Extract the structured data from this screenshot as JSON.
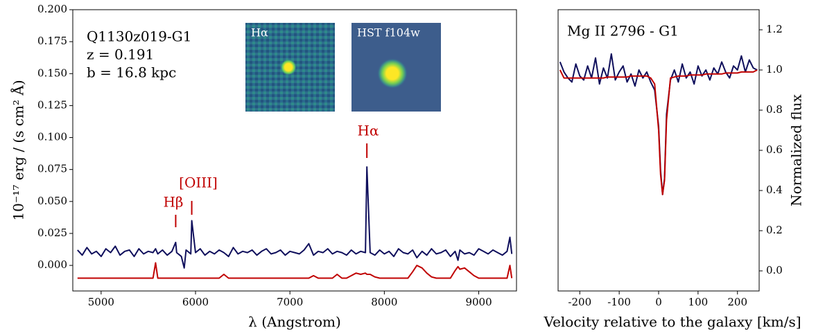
{
  "chart_data": [
    {
      "type": "line",
      "x_label": "λ (Angstrom)",
      "y_label": "10⁻¹⁷ erg / (s cm² Å)",
      "annotations": [
        "Q1130z019-G1",
        "z = 0.191",
        "b = 16.8 kpc"
      ],
      "line_labels": [
        {
          "text": "Hβ",
          "x": 5790
        },
        {
          "text": "[OIII]",
          "x": 5960
        },
        {
          "text": "Hα",
          "x": 7815
        }
      ],
      "line_label_color": "#c00000",
      "insets": [
        "Hα",
        "HST f104w"
      ],
      "xlim": [
        4700,
        9400
      ],
      "ylim": [
        -0.02,
        0.2
      ],
      "xticks": [
        5000,
        6000,
        7000,
        8000,
        9000
      ],
      "yticks": [
        {
          "value": 0,
          "label": "0.000"
        },
        {
          "value": 0.025,
          "label": "0.025"
        },
        {
          "value": 0.05,
          "label": "0.050"
        },
        {
          "value": 0.075,
          "label": "0.075"
        },
        {
          "value": 0.1,
          "label": "0.100"
        },
        {
          "value": 0.125,
          "label": "0.125"
        },
        {
          "value": 0.15,
          "label": "0.150"
        },
        {
          "value": 0.175,
          "label": "0.175"
        },
        {
          "value": 0.2,
          "label": "0.200"
        }
      ],
      "x": [
        4750,
        4800,
        4850,
        4900,
        4950,
        5000,
        5050,
        5100,
        5150,
        5200,
        5250,
        5300,
        5350,
        5400,
        5450,
        5500,
        5550,
        5577,
        5600,
        5650,
        5700,
        5750,
        5790,
        5800,
        5850,
        5880,
        5900,
        5950,
        5960,
        6000,
        6050,
        6100,
        6150,
        6200,
        6250,
        6300,
        6350,
        6400,
        6450,
        6500,
        6550,
        6600,
        6650,
        6700,
        6750,
        6800,
        6850,
        6900,
        6950,
        7000,
        7050,
        7100,
        7150,
        7200,
        7250,
        7300,
        7350,
        7400,
        7450,
        7500,
        7550,
        7600,
        7650,
        7700,
        7750,
        7800,
        7815,
        7850,
        7900,
        7950,
        8000,
        8050,
        8100,
        8150,
        8200,
        8250,
        8300,
        8345,
        8400,
        8450,
        8500,
        8550,
        8600,
        8650,
        8700,
        8750,
        8780,
        8800,
        8850,
        8900,
        8950,
        9000,
        9050,
        9100,
        9150,
        9200,
        9250,
        9300,
        9330,
        9350
      ],
      "series": [
        {
          "color": "#c00000",
          "values": [
            -0.01,
            -0.01,
            -0.01,
            -0.01,
            -0.01,
            -0.01,
            -0.01,
            -0.01,
            -0.01,
            -0.01,
            -0.01,
            -0.01,
            -0.01,
            -0.01,
            -0.01,
            -0.01,
            -0.01,
            0.002,
            -0.01,
            -0.01,
            -0.01,
            -0.01,
            -0.01,
            -0.01,
            -0.01,
            -0.01,
            -0.01,
            -0.01,
            -0.01,
            -0.01,
            -0.01,
            -0.01,
            -0.01,
            -0.01,
            -0.01,
            -0.007,
            -0.01,
            -0.01,
            -0.01,
            -0.01,
            -0.01,
            -0.01,
            -0.01,
            -0.01,
            -0.01,
            -0.01,
            -0.01,
            -0.01,
            -0.01,
            -0.01,
            -0.01,
            -0.01,
            -0.01,
            -0.01,
            -0.008,
            -0.01,
            -0.01,
            -0.01,
            -0.01,
            -0.007,
            -0.01,
            -0.01,
            -0.008,
            -0.006,
            -0.007,
            -0.006,
            -0.007,
            -0.007,
            -0.009,
            -0.01,
            -0.01,
            -0.01,
            -0.01,
            -0.01,
            -0.01,
            -0.01,
            -0.005,
            0,
            -0.002,
            -0.006,
            -0.009,
            -0.01,
            -0.01,
            -0.01,
            -0.01,
            -0.004,
            -0.001,
            -0.003,
            -0.002,
            -0.005,
            -0.008,
            -0.01,
            -0.01,
            -0.01,
            -0.01,
            -0.01,
            -0.01,
            -0.01,
            0,
            -0.01
          ]
        },
        {
          "color": "#0f0f5c",
          "values": [
            0.012,
            0.008,
            0.014,
            0.009,
            0.011,
            0.007,
            0.013,
            0.01,
            0.015,
            0.008,
            0.011,
            0.012,
            0.007,
            0.013,
            0.009,
            0.011,
            0.01,
            0.013,
            0.009,
            0.012,
            0.008,
            0.011,
            0.018,
            0.01,
            0.007,
            -0.002,
            0.012,
            0.009,
            0.035,
            0.01,
            0.013,
            0.008,
            0.011,
            0.009,
            0.012,
            0.01,
            0.007,
            0.014,
            0.009,
            0.011,
            0.01,
            0.012,
            0.008,
            0.011,
            0.013,
            0.009,
            0.01,
            0.012,
            0.008,
            0.011,
            0.01,
            0.009,
            0.012,
            0.017,
            0.008,
            0.011,
            0.01,
            0.013,
            0.009,
            0.011,
            0.01,
            0.008,
            0.012,
            0.009,
            0.011,
            0.01,
            0.077,
            0.01,
            0.008,
            0.012,
            0.009,
            0.011,
            0.007,
            0.013,
            0.01,
            0.009,
            0.012,
            0.006,
            0.011,
            0.008,
            0.013,
            0.009,
            0.01,
            0.012,
            0.007,
            0.011,
            0.004,
            0.012,
            0.009,
            0.01,
            0.008,
            0.013,
            0.011,
            0.009,
            0.012,
            0.01,
            0.008,
            0.011,
            0.022,
            0.009
          ]
        }
      ]
    },
    {
      "type": "line",
      "x_label": "Velocity relative to the galaxy [km/s]",
      "y_label": "Normalized flux",
      "annotations": [
        "Mg II 2796 - G1"
      ],
      "y_axis_side": "right",
      "xlim": [
        -255,
        255
      ],
      "ylim": [
        -0.1,
        1.3
      ],
      "xticks": [
        -200,
        -100,
        0,
        100,
        200
      ],
      "yticks": [
        {
          "value": 0,
          "label": "0.0"
        },
        {
          "value": 0.2,
          "label": "0.2"
        },
        {
          "value": 0.4,
          "label": "0.4"
        },
        {
          "value": 0.6,
          "label": "0.6"
        },
        {
          "value": 0.8,
          "label": "0.8"
        },
        {
          "value": 1,
          "label": "1.0"
        },
        {
          "value": 1.2,
          "label": "1.2"
        }
      ],
      "x": [
        -250,
        -240,
        -230,
        -220,
        -210,
        -200,
        -190,
        -180,
        -170,
        -160,
        -150,
        -140,
        -130,
        -120,
        -110,
        -100,
        -90,
        -80,
        -70,
        -60,
        -50,
        -40,
        -30,
        -20,
        -10,
        0,
        5,
        10,
        15,
        20,
        30,
        40,
        50,
        60,
        70,
        80,
        90,
        100,
        110,
        120,
        130,
        140,
        150,
        160,
        170,
        180,
        190,
        200,
        210,
        220,
        230,
        240,
        250
      ],
      "series": [
        {
          "color": "#0f0f5c",
          "values": [
            1.04,
            0.99,
            0.96,
            0.94,
            1.03,
            0.97,
            0.95,
            1.02,
            0.96,
            1.06,
            0.93,
            1.01,
            0.96,
            1.08,
            0.95,
            0.99,
            1.02,
            0.94,
            0.98,
            0.92,
            1,
            0.96,
            0.99,
            0.94,
            0.9,
            0.72,
            0.5,
            0.38,
            0.46,
            0.78,
            0.95,
            1,
            0.94,
            1.03,
            0.96,
            0.99,
            0.93,
            1.02,
            0.97,
            1,
            0.95,
            1.01,
            0.98,
            1.04,
            0.99,
            0.96,
            1.02,
            1,
            1.07,
            0.99,
            1.05,
            1.01,
            1
          ]
        },
        {
          "color": "#c00000",
          "values": [
            1,
            0.96,
            0.96,
            0.96,
            0.96,
            0.96,
            0.96,
            0.96,
            0.96,
            0.96,
            0.96,
            0.96,
            0.965,
            0.965,
            0.965,
            0.965,
            0.965,
            0.965,
            0.97,
            0.97,
            0.97,
            0.97,
            0.97,
            0.96,
            0.93,
            0.7,
            0.48,
            0.38,
            0.45,
            0.75,
            0.96,
            0.965,
            0.97,
            0.97,
            0.97,
            0.975,
            0.975,
            0.975,
            0.975,
            0.98,
            0.98,
            0.98,
            0.98,
            0.98,
            0.985,
            0.985,
            0.985,
            0.985,
            0.99,
            0.99,
            0.99,
            0.99,
            1
          ]
        }
      ]
    }
  ]
}
